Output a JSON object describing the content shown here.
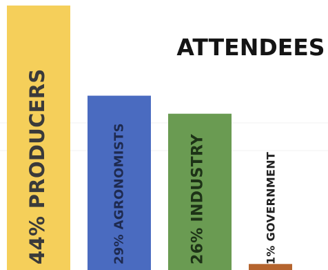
{
  "chart_data": {
    "type": "bar",
    "title": "ATTENDEES",
    "xlabel": "",
    "ylabel": "",
    "ylim": [
      0,
      44
    ],
    "grid": false,
    "legend": "none",
    "categories": [
      "PRODUCERS",
      "AGRONOMISTS",
      "INDUSTRY",
      "GOVERNMENT"
    ],
    "values": [
      44,
      29,
      26,
      1
    ],
    "bar_labels": [
      "44% PRODUCERS",
      "29% AGRONOMISTS",
      "26% INDUSTRY",
      "1% GOVERNMENT"
    ],
    "colors": [
      "#f5cf5a",
      "#4a6bc0",
      "#6a9b52",
      "#b5642e"
    ],
    "label_colors": [
      "#3a3a3a",
      "#1e2a4f",
      "#1d3217",
      "#222222"
    ]
  }
}
